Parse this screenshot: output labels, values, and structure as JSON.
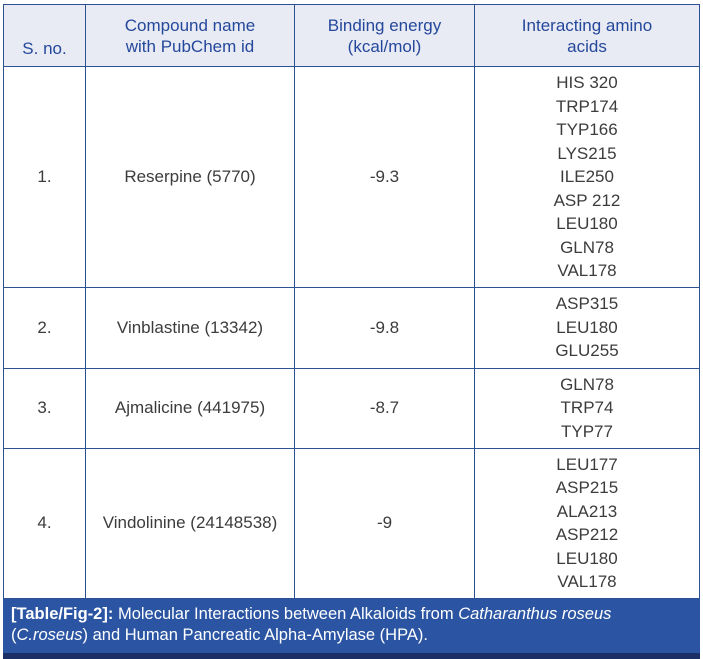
{
  "colors": {
    "border": "#2d5191",
    "header-bg": "#e8eaf4",
    "header-text": "#24489b",
    "body-text": "#3c3c3c",
    "caption-bg": "#2b55a3",
    "caption-text": "#ffffff",
    "accent-strip": "#1c2e66",
    "page-bg": "#ffffff"
  },
  "table": {
    "columns": [
      {
        "id": "sno",
        "lines": [
          "S. no."
        ]
      },
      {
        "id": "compound",
        "lines": [
          "Compound name",
          "with PubChem id"
        ]
      },
      {
        "id": "energy",
        "lines": [
          "Binding energy",
          "(kcal/mol)"
        ]
      },
      {
        "id": "amino",
        "lines": [
          "Interacting amino",
          "acids"
        ]
      }
    ],
    "rows": [
      {
        "sno": "1.",
        "compound": "Reserpine (5770)",
        "energy": "-9.3",
        "amino_acids": [
          "HIS 320",
          "TRP174",
          "TYP166",
          "LYS215",
          "ILE250",
          "ASP 212",
          "LEU180",
          "GLN78",
          "VAL178"
        ]
      },
      {
        "sno": "2.",
        "compound": "Vinblastine (13342)",
        "energy": "-9.8",
        "amino_acids": [
          "ASP315",
          "LEU180",
          "GLU255"
        ]
      },
      {
        "sno": "3.",
        "compound": "Ajmalicine (441975)",
        "energy": "-8.7",
        "amino_acids": [
          "GLN78",
          "TRP74",
          "TYP77"
        ]
      },
      {
        "sno": "4.",
        "compound": "Vindolinine (24148538)",
        "energy": "-9",
        "amino_acids": [
          "LEU177",
          "ASP215",
          "ALA213",
          "ASP212",
          "LEU180",
          "VAL178"
        ]
      }
    ]
  },
  "caption": {
    "label": "[Table/Fig-2]:",
    "segments": [
      {
        "text": " Molecular Interactions between Alkaloids from ",
        "italic": false
      },
      {
        "text": "Catharanthus roseus",
        "italic": true
      },
      {
        "text": " (",
        "italic": false
      },
      {
        "text": "C.roseus",
        "italic": true
      },
      {
        "text": ") and Human Pancreatic Alpha-Amylase (HPA).",
        "italic": false
      }
    ]
  }
}
